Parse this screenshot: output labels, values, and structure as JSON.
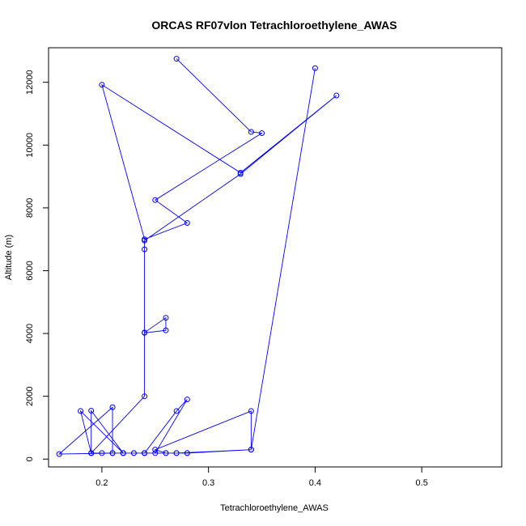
{
  "chart_data": {
    "type": "line",
    "title": "ORCAS RF07vlon Tetrachloroethylene_AWAS",
    "xlabel": "Tetrachloroethylene_AWAS",
    "ylabel": "Altitude (m)",
    "xlim": [
      0.15,
      0.575
    ],
    "ylim": [
      -250,
      13100
    ],
    "xticks": [
      0.2,
      0.3,
      0.4,
      0.5
    ],
    "xtick_labels": [
      "0.2",
      "0.3",
      "0.4",
      "0.5"
    ],
    "yticks": [
      0,
      2000,
      4000,
      6000,
      8000,
      10000,
      12000
    ],
    "ytick_labels": [
      "0",
      "2000",
      "4000",
      "6000",
      "8000",
      "10000",
      "12000"
    ],
    "grid": false,
    "series_color": "#0000ff",
    "series": [
      {
        "x": [
          0.27,
          0.34,
          0.35,
          0.25,
          0.28,
          0.24,
          0.2,
          0.33,
          0.42,
          0.33,
          0.24,
          0.24,
          0.24,
          0.26,
          0.26,
          0.24,
          0.24,
          0.19,
          0.2,
          0.21,
          0.22,
          0.23,
          0.24,
          0.26,
          0.27,
          0.34,
          0.34,
          0.25,
          0.26,
          0.24,
          0.19,
          0.22,
          0.18,
          0.19,
          0.21,
          0.21,
          0.16,
          0.21,
          0.22,
          0.23,
          0.24,
          0.25,
          0.28,
          0.27,
          0.24,
          0.19,
          0.19,
          0.22,
          0.27,
          0.28,
          0.28,
          0.34,
          0.4
        ],
        "y": [
          12750,
          10420,
          10380,
          8250,
          7520,
          7000,
          11920,
          9120,
          11580,
          9080,
          6960,
          6680,
          4020,
          4100,
          4500,
          4030,
          2000,
          190,
          190,
          190,
          190,
          190,
          190,
          190,
          190,
          300,
          1530,
          300,
          190,
          190,
          190,
          190,
          1530,
          190,
          190,
          1650,
          160,
          190,
          190,
          190,
          190,
          190,
          1900,
          1530,
          190,
          190,
          1540,
          190,
          190,
          190,
          190,
          300,
          12450
        ]
      }
    ]
  }
}
